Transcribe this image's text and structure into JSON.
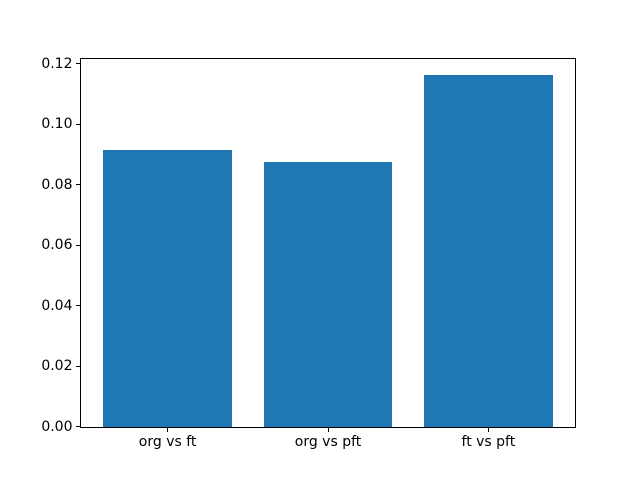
{
  "chart_data": {
    "type": "bar",
    "categories": [
      "org vs ft",
      "org vs pft",
      "ft vs pft"
    ],
    "values": [
      0.0914,
      0.0877,
      0.1164
    ],
    "title": "",
    "xlabel": "",
    "ylabel": "",
    "ylim": [
      0,
      0.1218
    ],
    "xlim": [
      -0.54,
      2.54
    ],
    "bar_width": 0.8,
    "yticks": [
      0.0,
      0.02,
      0.04,
      0.06,
      0.08,
      0.1,
      0.12
    ],
    "ytick_labels": [
      "0.00",
      "0.02",
      "0.04",
      "0.06",
      "0.08",
      "0.10",
      "0.12"
    ],
    "bar_color": "#1f77b4",
    "grid": false,
    "legend_position": "none"
  },
  "colors": {
    "background": "#ffffff",
    "spine": "#000000",
    "text": "#000000"
  }
}
